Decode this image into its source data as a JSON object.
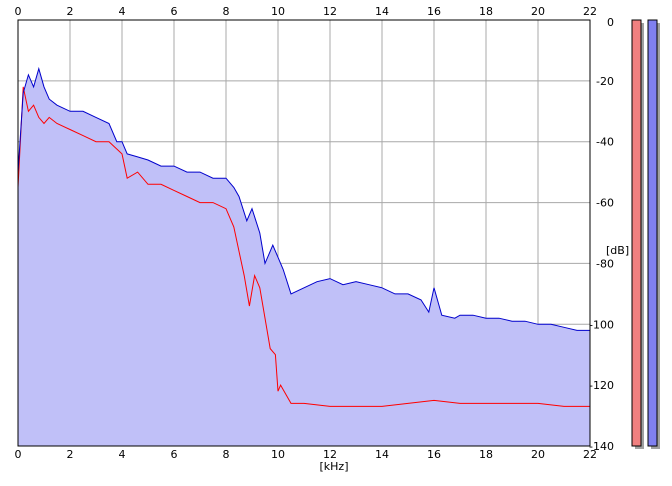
{
  "chart_data": {
    "type": "line",
    "xlabel": "[kHz]",
    "ylabel": "[dB]",
    "xlim": [
      0,
      22
    ],
    "ylim": [
      -140,
      0
    ],
    "xticks": [
      0,
      2,
      4,
      6,
      8,
      10,
      12,
      14,
      16,
      18,
      20,
      22
    ],
    "yticks": [
      0,
      -20,
      -40,
      -60,
      -80,
      -100,
      -120,
      -140
    ],
    "xtick_labels": [
      "0",
      "2",
      "4",
      "6",
      "8",
      "10",
      "12",
      "14",
      "16",
      "18",
      "20",
      "22"
    ],
    "ytick_labels": [
      "0",
      "-20",
      "-40",
      "-60",
      "-80",
      "-100",
      "-120",
      "-140"
    ],
    "grid": true,
    "series": [
      {
        "color": "#0000cc",
        "fill": "#c0c0f8",
        "x": [
          0,
          0.2,
          0.4,
          0.6,
          0.8,
          1.0,
          1.2,
          1.5,
          2.0,
          2.5,
          3.0,
          3.5,
          3.8,
          4.0,
          4.2,
          4.6,
          5.0,
          5.5,
          6.0,
          6.5,
          7.0,
          7.5,
          8.0,
          8.3,
          8.5,
          8.8,
          9.0,
          9.3,
          9.5,
          9.8,
          10.0,
          10.2,
          10.5,
          11.0,
          11.5,
          12.0,
          12.5,
          13.0,
          13.5,
          14.0,
          14.5,
          15.0,
          15.5,
          15.8,
          16.0,
          16.3,
          16.8,
          17.0,
          17.5,
          18.0,
          18.5,
          19.0,
          19.5,
          20.0,
          20.5,
          21.0,
          21.5,
          22.0
        ],
        "y": [
          -50,
          -24,
          -18,
          -22,
          -16,
          -22,
          -26,
          -28,
          -30,
          -30,
          -32,
          -34,
          -40,
          -40,
          -44,
          -45,
          -46,
          -48,
          -48,
          -50,
          -50,
          -52,
          -52,
          -55,
          -58,
          -66,
          -62,
          -70,
          -80,
          -74,
          -78,
          -82,
          -90,
          -88,
          -86,
          -85,
          -87,
          -86,
          -87,
          -88,
          -90,
          -90,
          -92,
          -96,
          -88,
          -97,
          -98,
          -97,
          -97,
          -98,
          -98,
          -99,
          -99,
          -100,
          -100,
          -101,
          -102,
          -102
        ]
      },
      {
        "color": "#ff0000",
        "x": [
          0,
          0.2,
          0.4,
          0.6,
          0.8,
          1.0,
          1.2,
          1.5,
          2.0,
          2.5,
          3.0,
          3.5,
          4.0,
          4.2,
          4.6,
          5.0,
          5.5,
          6.0,
          6.5,
          7.0,
          7.5,
          8.0,
          8.3,
          8.5,
          8.7,
          8.9,
          9.1,
          9.3,
          9.5,
          9.7,
          9.9,
          10.0,
          10.1,
          10.5,
          11.0,
          12.0,
          13.0,
          14.0,
          15.0,
          16.0,
          17.0,
          18.0,
          19.0,
          20.0,
          21.0,
          22.0
        ],
        "y": [
          -55,
          -22,
          -30,
          -28,
          -32,
          -34,
          -32,
          -34,
          -36,
          -38,
          -40,
          -40,
          -44,
          -52,
          -50,
          -54,
          -54,
          -56,
          -58,
          -60,
          -60,
          -62,
          -68,
          -76,
          -84,
          -94,
          -84,
          -88,
          -98,
          -108,
          -110,
          -122,
          -120,
          -126,
          -126,
          -127,
          -127,
          -127,
          -126,
          -125,
          -126,
          -126,
          -126,
          -126,
          -127,
          -127
        ]
      }
    ],
    "level_meters": [
      {
        "color": "#f08080"
      },
      {
        "color": "#8080f0"
      }
    ]
  }
}
